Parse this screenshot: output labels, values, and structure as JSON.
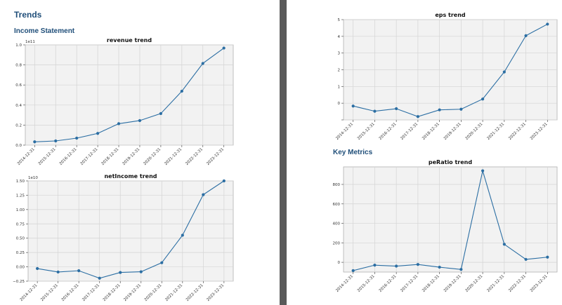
{
  "page": {
    "heading_trends": "Trends",
    "heading_income": "Income Statement",
    "heading_keymetrics": "Key Metrics"
  },
  "colors": {
    "line": "#2b6ea3",
    "plot_bg": "#f2f2f2",
    "grid": "#d4d4d4",
    "heading": "#1f4e79",
    "divider": "#5a5a5a"
  },
  "chart_data": [
    {
      "id": "revenue",
      "type": "line",
      "title": "revenue trend",
      "xlabel": "",
      "ylabel": "",
      "offset_text": "1e11",
      "categories": [
        "2014-12-31",
        "2015-12-31",
        "2016-12-31",
        "2017-12-31",
        "2018-12-31",
        "2019-12-31",
        "2020-12-31",
        "2021-12-31",
        "2022-12-31",
        "2023-12-31"
      ],
      "values": [
        0.033,
        0.042,
        0.07,
        0.117,
        0.214,
        0.245,
        0.315,
        0.538,
        0.815,
        0.968
      ],
      "ylim": [
        0,
        1.0
      ],
      "yticks": [
        0.0,
        0.2,
        0.4,
        0.6,
        0.8,
        1.0
      ],
      "ytick_labels": [
        "0.0",
        "0.2",
        "0.4",
        "0.6",
        "0.8",
        "1.0"
      ],
      "grid": true
    },
    {
      "id": "netincome",
      "type": "line",
      "title": "netIncome trend",
      "xlabel": "",
      "ylabel": "",
      "offset_text": "1e10",
      "categories": [
        "2014-12-31",
        "2015-12-31",
        "2016-12-31",
        "2017-12-31",
        "2018-12-31",
        "2019-12-31",
        "2020-12-31",
        "2021-12-31",
        "2022-12-31",
        "2023-12-31"
      ],
      "values": [
        -0.03,
        -0.09,
        -0.068,
        -0.198,
        -0.098,
        -0.086,
        0.072,
        0.552,
        1.26,
        1.5
      ],
      "ylim": [
        -0.25,
        1.5
      ],
      "yticks": [
        -0.25,
        0.0,
        0.25,
        0.5,
        0.75,
        1.0,
        1.25,
        1.5
      ],
      "ytick_labels": [
        "−0.25",
        "0.00",
        "0.25",
        "0.50",
        "0.75",
        "1.00",
        "1.25",
        "1.50"
      ],
      "grid": true
    },
    {
      "id": "eps",
      "type": "line",
      "title": "eps trend",
      "xlabel": "",
      "ylabel": "",
      "offset_text": "",
      "categories": [
        "2014-12-31",
        "2015-12-31",
        "2016-12-31",
        "2017-12-31",
        "2018-12-31",
        "2019-12-31",
        "2020-12-31",
        "2021-12-31",
        "2022-12-31",
        "2023-12-31"
      ],
      "values": [
        -0.17,
        -0.48,
        -0.33,
        -0.8,
        -0.4,
        -0.36,
        0.25,
        1.87,
        4.04,
        4.73
      ],
      "ylim": [
        -1.0,
        5.0
      ],
      "yticks": [
        -1,
        0,
        1,
        2,
        3,
        4,
        5
      ],
      "ytick_labels": [
        "",
        "0",
        "1",
        "2",
        "3",
        "4",
        "5"
      ],
      "grid": true
    },
    {
      "id": "peratio",
      "type": "line",
      "title": "peRatio trend",
      "xlabel": "",
      "ylabel": "",
      "offset_text": "",
      "categories": [
        "2014-12-31",
        "2015-12-31",
        "2016-12-31",
        "2017-12-31",
        "2018-12-31",
        "2019-12-31",
        "2020-12-31",
        "2021-12-31",
        "2022-12-31",
        "2023-12-31"
      ],
      "values": [
        -85,
        -29,
        -39,
        -22,
        -50,
        -73,
        940,
        185,
        30,
        53
      ],
      "ylim": [
        -100,
        980
      ],
      "yticks": [
        0,
        200,
        400,
        600,
        800
      ],
      "ytick_labels": [
        "0",
        "200",
        "400",
        "600",
        "800"
      ],
      "grid": true
    }
  ]
}
